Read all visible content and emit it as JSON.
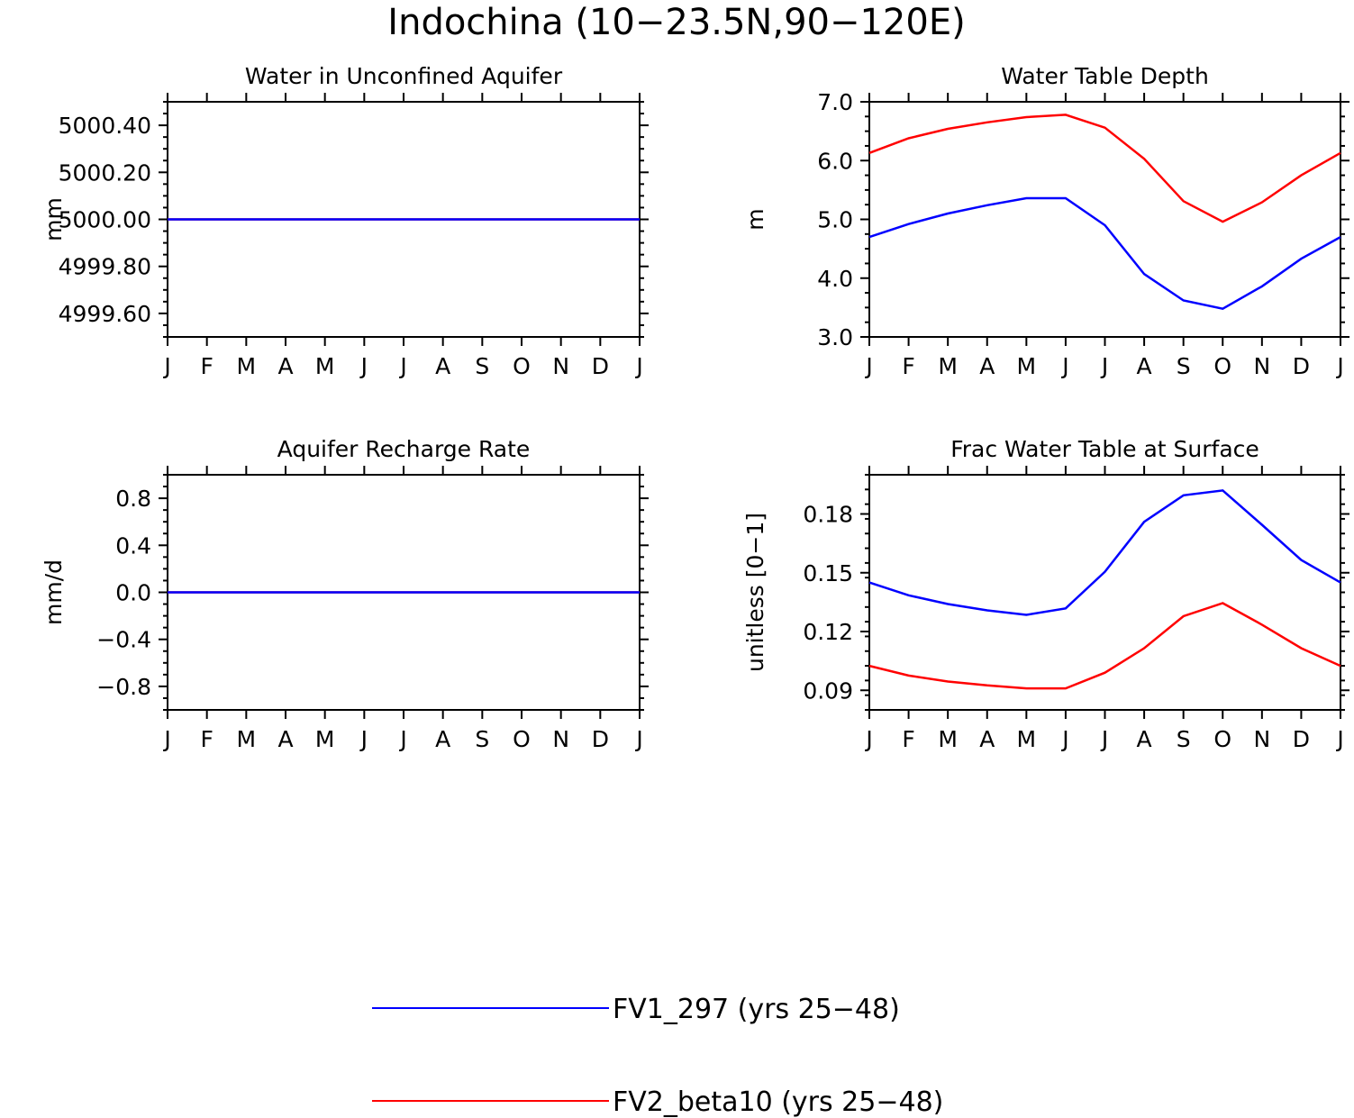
{
  "figure_title": "Indochina (10−23.5N,90−120E)",
  "month_labels": [
    "J",
    "F",
    "M",
    "A",
    "M",
    "J",
    "J",
    "A",
    "S",
    "O",
    "N",
    "D",
    "J"
  ],
  "colors": {
    "series_1": "#0000ff",
    "series_2": "#ff0000",
    "axes": "#000000"
  },
  "legend": [
    {
      "label": "FV1_297 (yrs 25−48)",
      "color": "#0000ff"
    },
    {
      "label": "FV2_beta10 (yrs 25−48)",
      "color": "#ff0000"
    }
  ],
  "chart_data": [
    {
      "type": "line",
      "title": "Water in Unconfined Aquifer",
      "ylabel": "mm",
      "ylim": [
        4999.5,
        5000.5
      ],
      "yticks": [
        4999.6,
        4999.8,
        5000.0,
        5000.2,
        5000.4
      ],
      "ytick_labels": [
        "4999.60",
        "4999.80",
        "5000.00",
        "5000.20",
        "5000.40"
      ],
      "series": [
        {
          "color": "#0000ff",
          "values": [
            5000,
            5000,
            5000,
            5000,
            5000,
            5000,
            5000,
            5000,
            5000,
            5000,
            5000,
            5000,
            5000
          ]
        },
        {
          "color": "#ff0000",
          "values": [
            5000,
            5000,
            5000,
            5000,
            5000,
            5000,
            5000,
            5000,
            5000,
            5000,
            5000,
            5000,
            5000
          ]
        }
      ]
    },
    {
      "type": "line",
      "title": "Water Table Depth",
      "ylabel": "m",
      "ylim": [
        3.0,
        7.0
      ],
      "yticks": [
        3.0,
        4.0,
        5.0,
        6.0,
        7.0
      ],
      "ytick_labels": [
        "3.0",
        "4.0",
        "5.0",
        "6.0",
        "7.0"
      ],
      "series": [
        {
          "color": "#0000ff",
          "values": [
            4.7,
            4.92,
            5.1,
            5.24,
            5.36,
            5.36,
            4.9,
            4.07,
            3.62,
            3.48,
            3.86,
            4.33,
            4.7
          ]
        },
        {
          "color": "#ff0000",
          "values": [
            6.13,
            6.38,
            6.54,
            6.65,
            6.74,
            6.78,
            6.56,
            6.03,
            5.31,
            4.96,
            5.29,
            5.75,
            6.13
          ]
        }
      ]
    },
    {
      "type": "line",
      "title": "Aquifer Recharge Rate",
      "ylabel": "mm/d",
      "ylim": [
        -1.0,
        1.0
      ],
      "yticks": [
        -0.8,
        -0.4,
        0.0,
        0.4,
        0.8
      ],
      "ytick_labels": [
        "−0.8",
        "−0.4",
        "0.0",
        "0.4",
        "0.8"
      ],
      "series": [
        {
          "color": "#0000ff",
          "values": [
            0,
            0,
            0,
            0,
            0,
            0,
            0,
            0,
            0,
            0,
            0,
            0,
            0
          ]
        },
        {
          "color": "#ff0000",
          "values": [
            0,
            0,
            0,
            0,
            0,
            0,
            0,
            0,
            0,
            0,
            0,
            0,
            0
          ]
        }
      ]
    },
    {
      "type": "line",
      "title": "Frac Water Table at Surface",
      "ylabel": "unitless [0−1]",
      "ylim": [
        0.08,
        0.2
      ],
      "yticks": [
        0.09,
        0.12,
        0.15,
        0.18
      ],
      "ytick_labels": [
        "0.09",
        "0.12",
        "0.15",
        "0.18"
      ],
      "series": [
        {
          "color": "#0000ff",
          "values": [
            0.145,
            0.1385,
            0.134,
            0.1308,
            0.1285,
            0.1318,
            0.1505,
            0.176,
            0.1895,
            0.192,
            0.1745,
            0.1565,
            0.145
          ]
        },
        {
          "color": "#ff0000",
          "values": [
            0.1025,
            0.0975,
            0.0945,
            0.0925,
            0.091,
            0.091,
            0.099,
            0.1115,
            0.1278,
            0.1345,
            0.1235,
            0.1115,
            0.1025
          ]
        }
      ]
    }
  ]
}
